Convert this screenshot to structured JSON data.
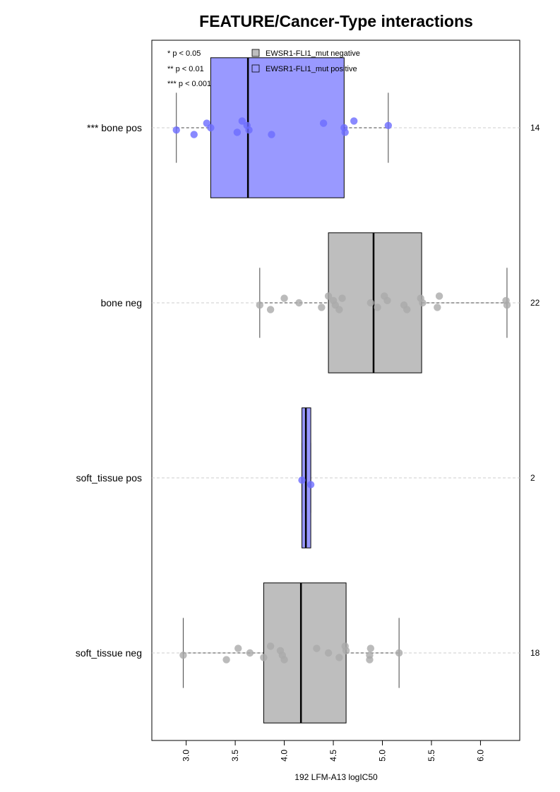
{
  "chart_data": {
    "type": "boxplot",
    "orientation": "horizontal",
    "title": "FEATURE/Cancer-Type interactions",
    "xlabel": "192 LFM-A13 logIC50",
    "xlim": [
      2.65,
      6.4
    ],
    "xticks": [
      3.0,
      3.5,
      4.0,
      4.5,
      5.0,
      5.5,
      6.0
    ],
    "xtick_labels": [
      "3.0",
      "3.5",
      "4.0",
      "4.5",
      "5.0",
      "5.5",
      "6.0"
    ],
    "significance_legend": [
      "* p < 0.05",
      "** p < 0.01",
      "*** p < 0.001"
    ],
    "legend": [
      {
        "label": "EWSR1-FLI1_mut negative",
        "color": "#bebebe"
      },
      {
        "label": "EWSR1-FLI1_mut positive",
        "color": "#9999ff"
      }
    ],
    "colors": {
      "negative_box": "#bebebe",
      "positive_box": "#9999ff",
      "negative_point": "#aaaaaa",
      "positive_point": "#6b6bff"
    },
    "groups": [
      {
        "label": "*** bone pos",
        "count": "14",
        "status": "positive",
        "whisker_low": 2.9,
        "q1": 3.25,
        "median": 3.63,
        "q3": 4.61,
        "whisker_high": 5.06,
        "points": [
          2.9,
          3.08,
          3.21,
          3.25,
          3.52,
          3.57,
          3.62,
          3.64,
          3.87,
          4.4,
          4.61,
          4.62,
          4.71,
          5.06
        ]
      },
      {
        "label": "bone neg",
        "count": "22",
        "status": "negative",
        "whisker_low": 3.75,
        "q1": 4.45,
        "median": 4.91,
        "q3": 5.4,
        "whisker_high": 6.27,
        "points": [
          3.75,
          3.86,
          4.0,
          4.15,
          4.38,
          4.45,
          4.5,
          4.52,
          4.56,
          4.59,
          4.88,
          4.95,
          5.02,
          5.05,
          5.22,
          5.25,
          5.39,
          5.41,
          5.56,
          5.58,
          6.26,
          6.27
        ]
      },
      {
        "label": "soft_tissue pos",
        "count": "2",
        "status": "positive",
        "whisker_low": 4.18,
        "q1": 4.18,
        "median": 4.22,
        "q3": 4.27,
        "whisker_high": 4.27,
        "points": [
          4.18,
          4.27
        ]
      },
      {
        "label": "soft_tissue neg",
        "count": "18",
        "status": "negative",
        "whisker_low": 2.97,
        "q1": 3.79,
        "median": 4.17,
        "q3": 4.63,
        "whisker_high": 5.17,
        "points": [
          2.97,
          3.41,
          3.53,
          3.65,
          3.79,
          3.86,
          3.96,
          3.98,
          4.0,
          4.33,
          4.45,
          4.56,
          4.62,
          4.63,
          4.87,
          4.87,
          4.88,
          5.17
        ]
      }
    ]
  }
}
